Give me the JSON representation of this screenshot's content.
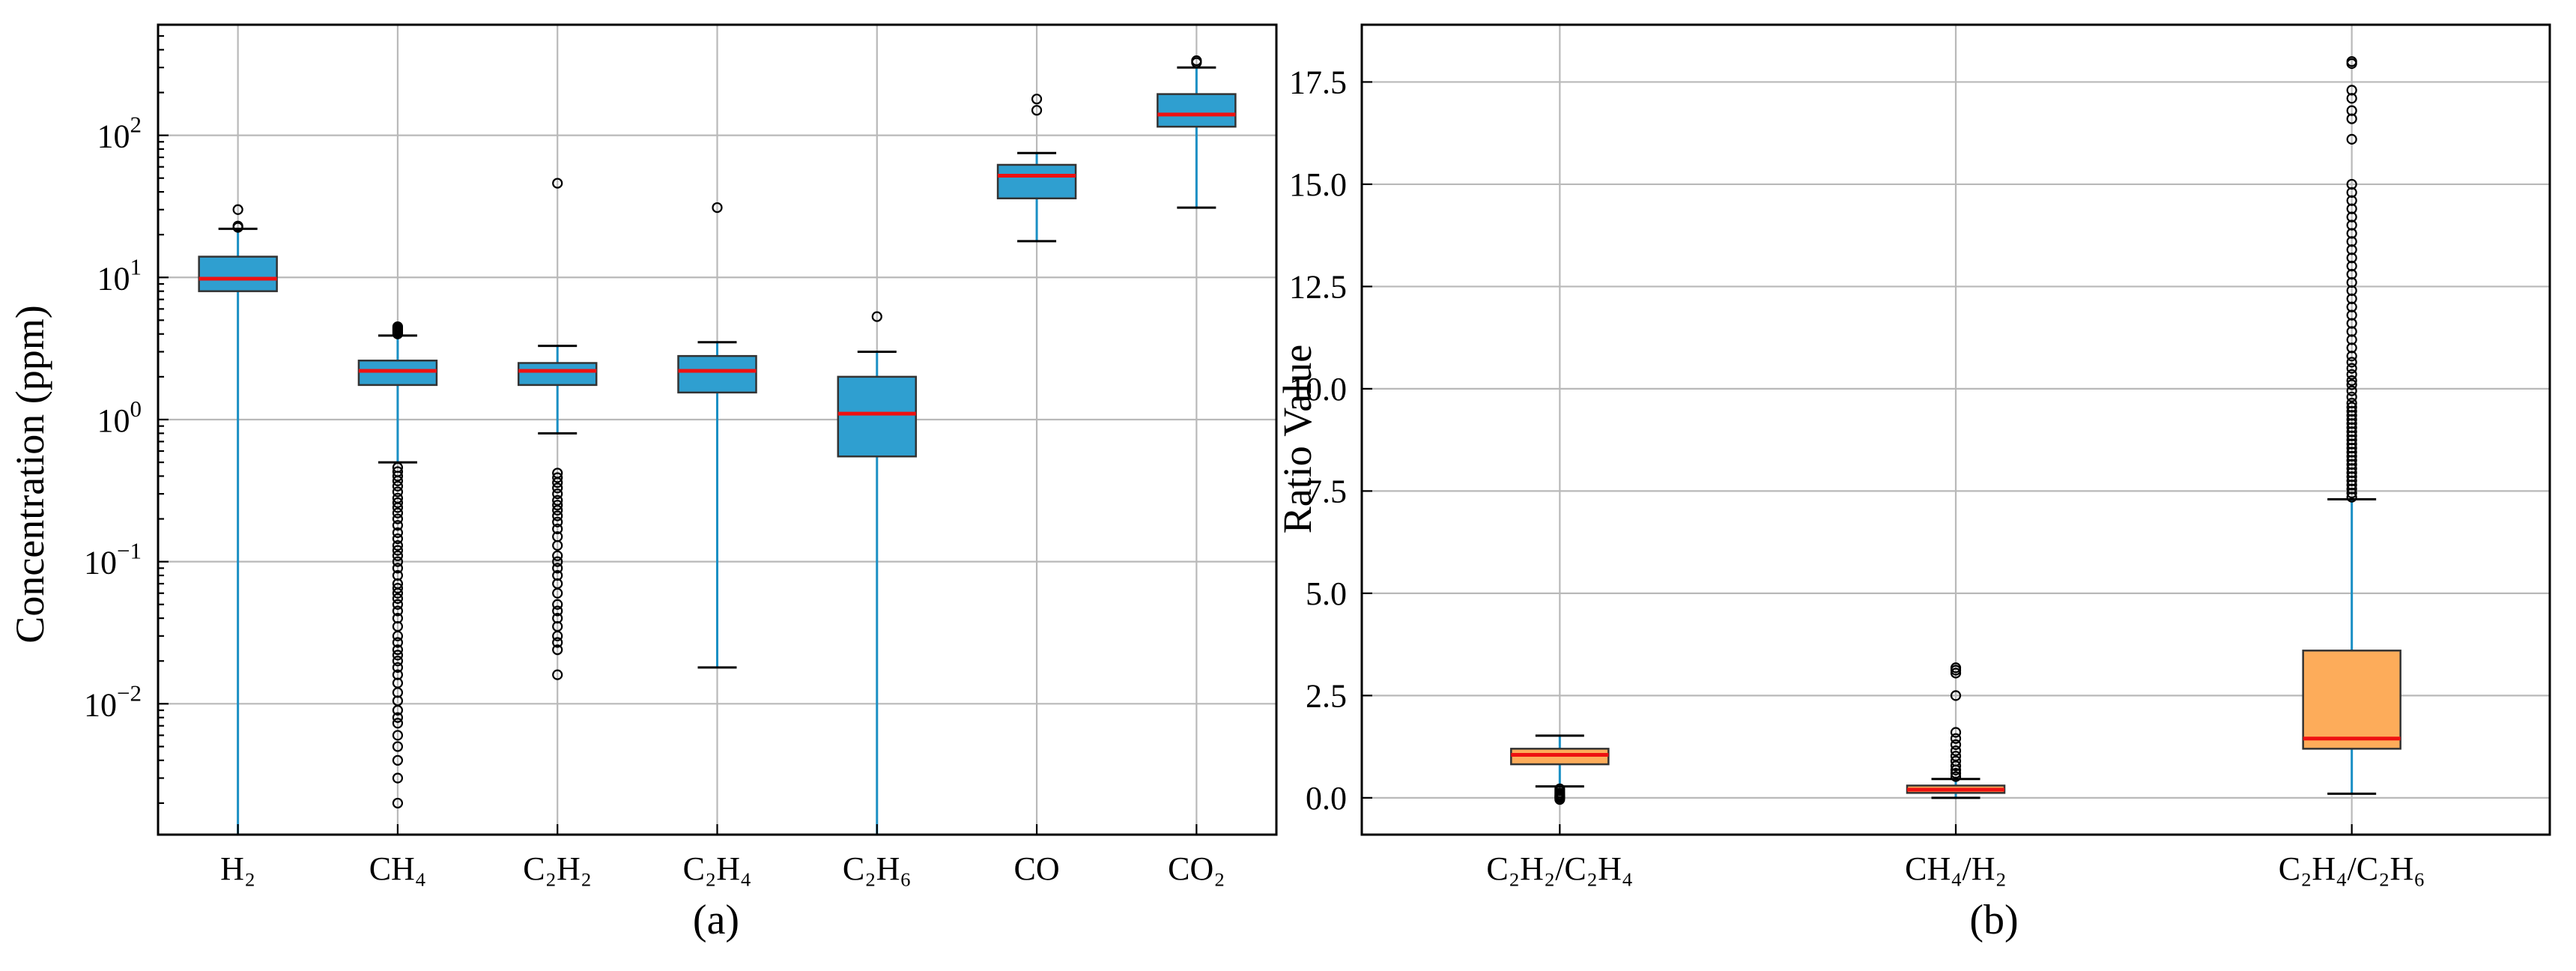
{
  "colors": {
    "box_blue": "#2f9fd0",
    "box_orange": "#fdac5a",
    "median_red": "#ee1111",
    "whisker_blue": "#1a8fc4",
    "outline": "#333333"
  },
  "chart_data": [
    {
      "type": "box",
      "panel_label": "(a)",
      "ylabel": "Concentration (ppm)",
      "yscale": "log",
      "ylim": [
        0.0012,
        600
      ],
      "grid": true,
      "y_ticks": [
        {
          "value": 0.01,
          "base": "10",
          "exp": "−2"
        },
        {
          "value": 0.1,
          "base": "10",
          "exp": "−1"
        },
        {
          "value": 1,
          "base": "10",
          "exp": "0"
        },
        {
          "value": 10,
          "base": "10",
          "exp": "1"
        },
        {
          "value": 100,
          "base": "10",
          "exp": "2"
        }
      ],
      "categories": [
        "H₂",
        "CH₄",
        "C₂H₂",
        "C₂H₄",
        "C₂H₆",
        "CO",
        "CO₂"
      ],
      "boxes": [
        {
          "q1": 8.0,
          "median": 9.8,
          "q3": 14.0,
          "whislo": 0.0012,
          "whishi": 22.0,
          "fliers": [
            22.5,
            23.0,
            30.0
          ]
        },
        {
          "q1": 1.75,
          "median": 2.2,
          "q3": 2.6,
          "whislo": 0.5,
          "whishi": 3.9,
          "fliers": [
            4.0,
            4.1,
            4.2,
            4.3,
            4.4,
            4.5,
            0.46,
            0.43,
            0.4,
            0.37,
            0.34,
            0.31,
            0.28,
            0.26,
            0.24,
            0.22,
            0.2,
            0.18,
            0.16,
            0.145,
            0.13,
            0.12,
            0.11,
            0.1,
            0.09,
            0.08,
            0.07,
            0.065,
            0.06,
            0.055,
            0.05,
            0.045,
            0.04,
            0.035,
            0.03,
            0.027,
            0.024,
            0.022,
            0.02,
            0.018,
            0.016,
            0.014,
            0.012,
            0.0105,
            0.009,
            0.008,
            0.0073,
            0.006,
            0.005,
            0.004,
            0.003,
            0.002
          ]
        },
        {
          "q1": 1.75,
          "median": 2.2,
          "q3": 2.5,
          "whislo": 0.8,
          "whishi": 3.3,
          "fliers": [
            46.0,
            0.42,
            0.39,
            0.36,
            0.33,
            0.3,
            0.27,
            0.25,
            0.23,
            0.21,
            0.19,
            0.17,
            0.15,
            0.13,
            0.11,
            0.1,
            0.09,
            0.08,
            0.07,
            0.06,
            0.05,
            0.045,
            0.04,
            0.035,
            0.03,
            0.027,
            0.024,
            0.016
          ]
        },
        {
          "q1": 1.55,
          "median": 2.2,
          "q3": 2.8,
          "whislo": 0.018,
          "whishi": 3.5,
          "fliers": [
            31.0
          ]
        },
        {
          "q1": 0.55,
          "median": 1.1,
          "q3": 2.0,
          "whislo": 0.0012,
          "whishi": 3.0,
          "fliers": [
            5.3
          ]
        },
        {
          "q1": 36.0,
          "median": 52.0,
          "q3": 62.0,
          "whislo": 18.0,
          "whishi": 75.0,
          "fliers": [
            150.0,
            180.0
          ]
        },
        {
          "q1": 115.0,
          "median": 140.0,
          "q3": 195.0,
          "whislo": 31.0,
          "whishi": 300.0,
          "fliers": [
            325.0,
            335.0
          ]
        }
      ]
    },
    {
      "type": "box",
      "panel_label": "(b)",
      "ylabel": "Ratio Value",
      "yscale": "linear",
      "ylim": [
        -0.9,
        18.9
      ],
      "grid": true,
      "y_ticks": [
        {
          "value": 0,
          "label": "0.0"
        },
        {
          "value": 2.5,
          "label": "2.5"
        },
        {
          "value": 5,
          "label": "5.0"
        },
        {
          "value": 7.5,
          "label": "7.5"
        },
        {
          "value": 10,
          "label": "10.0"
        },
        {
          "value": 12.5,
          "label": "12.5"
        },
        {
          "value": 15,
          "label": "15.0"
        },
        {
          "value": 17.5,
          "label": "17.5"
        }
      ],
      "categories": [
        "C₂H₂/C₂H₄",
        "CH₄/H₂",
        "C₂H₄/C₂H₆"
      ],
      "boxes": [
        {
          "q1": 0.82,
          "median": 1.05,
          "q3": 1.2,
          "whislo": 0.28,
          "whishi": 1.52,
          "fliers": [
            0.22,
            0.17,
            0.12,
            0.08,
            0.05,
            0.02,
            0.0,
            -0.04
          ]
        },
        {
          "q1": 0.12,
          "median": 0.2,
          "q3": 0.3,
          "whislo": 0.0,
          "whishi": 0.46,
          "fliers": [
            0.52,
            0.6,
            0.68,
            0.78,
            0.9,
            1.02,
            1.15,
            1.3,
            1.45,
            1.6,
            2.5,
            3.05,
            3.12,
            3.18
          ]
        },
        {
          "q1": 1.2,
          "median": 1.45,
          "q3": 3.6,
          "whislo": 0.1,
          "whishi": 7.3,
          "fliers": [
            7.35,
            7.45,
            7.55,
            7.65,
            7.75,
            7.85,
            7.95,
            8.05,
            8.15,
            8.25,
            8.35,
            8.45,
            8.55,
            8.65,
            8.75,
            8.85,
            8.95,
            9.05,
            9.15,
            9.25,
            9.35,
            9.45,
            9.55,
            9.65,
            9.8,
            9.95,
            10.1,
            10.2,
            10.35,
            10.5,
            10.65,
            10.8,
            11.0,
            11.2,
            11.4,
            11.6,
            11.8,
            12.0,
            12.2,
            12.4,
            12.6,
            12.8,
            13.0,
            13.2,
            13.4,
            13.6,
            13.8,
            14.0,
            14.2,
            14.4,
            14.6,
            14.8,
            15.0,
            16.1,
            16.6,
            16.8,
            17.1,
            17.3,
            17.95,
            18.0
          ]
        }
      ]
    }
  ]
}
